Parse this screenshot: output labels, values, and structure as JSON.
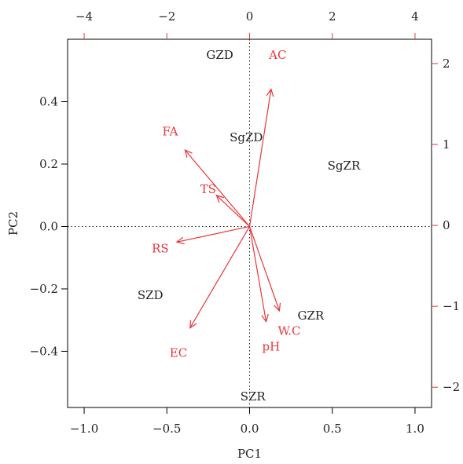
{
  "chart_data": {
    "type": "biplot",
    "xlabel": "PC1",
    "ylabel": "PC2",
    "xlim": [
      -1.1,
      1.1
    ],
    "ylim": [
      -0.58,
      0.6
    ],
    "x_ticks": [
      -1.0,
      -0.5,
      0.0,
      0.5,
      1.0
    ],
    "x_tick_labels": [
      "−1.0",
      "−0.5",
      "0.0",
      "0.5",
      "1.0"
    ],
    "y_ticks": [
      -0.4,
      -0.2,
      0.0,
      0.2,
      0.4
    ],
    "y_tick_labels": [
      "−0.4",
      "−0.2",
      "0.0",
      "0.2",
      "0.4"
    ],
    "top_xlim": [
      -4.4,
      4.4
    ],
    "top_ticks": [
      -4,
      -2,
      0,
      2,
      4
    ],
    "top_tick_labels": [
      "−4",
      "−2",
      "0",
      "2",
      "4"
    ],
    "right_ylim": [
      -2.25,
      2.3
    ],
    "right_ticks": [
      -2,
      -1,
      0,
      1,
      2
    ],
    "right_tick_labels": [
      "−2",
      "−1",
      "0",
      "1",
      "2"
    ],
    "grid": false,
    "observations": [
      {
        "label": "GZD",
        "x": -0.18,
        "y": 0.55
      },
      {
        "label": "SgZD",
        "x": -0.02,
        "y": 0.285
      },
      {
        "label": "SgZR",
        "x": 0.57,
        "y": 0.195
      },
      {
        "label": "SZD",
        "x": -0.6,
        "y": -0.22
      },
      {
        "label": "GZR",
        "x": 0.37,
        "y": -0.285
      },
      {
        "label": "SZR",
        "x": 0.02,
        "y": -0.545
      }
    ],
    "variables": [
      {
        "label": "AC",
        "x": 0.13,
        "y": 0.44,
        "label_x": 0.17,
        "label_y": 0.55
      },
      {
        "label": "FA",
        "x": -0.39,
        "y": 0.245,
        "label_x": -0.48,
        "label_y": 0.305
      },
      {
        "label": "TS",
        "x": -0.2,
        "y": 0.1,
        "label_x": -0.25,
        "label_y": 0.12
      },
      {
        "label": "RS",
        "x": -0.44,
        "y": -0.05,
        "label_x": -0.54,
        "label_y": -0.07
      },
      {
        "label": "EC",
        "x": -0.36,
        "y": -0.325,
        "label_x": -0.43,
        "label_y": -0.405
      },
      {
        "label": "pH",
        "x": 0.1,
        "y": -0.305,
        "label_x": 0.13,
        "label_y": -0.385
      },
      {
        "label": "W.C",
        "x": 0.18,
        "y": -0.27,
        "label_x": 0.24,
        "label_y": -0.335
      }
    ]
  }
}
